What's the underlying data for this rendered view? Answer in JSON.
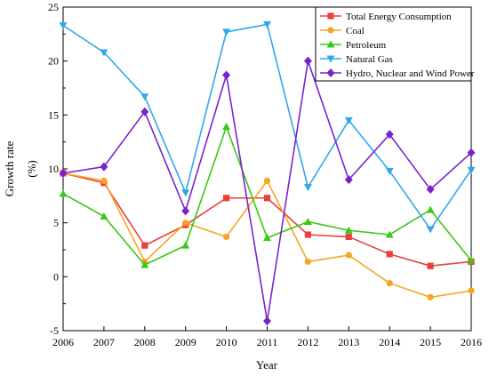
{
  "chart_data": {
    "type": "line",
    "title": "",
    "xlabel": "Year",
    "ylabel": "Growth rate",
    "ylabel_unit": "(%)",
    "x": [
      "2006",
      "2007",
      "2008",
      "2009",
      "2010",
      "2011",
      "2012",
      "2013",
      "2014",
      "2015",
      "2016"
    ],
    "x_ticks": [
      "2006",
      "2007",
      "2008",
      "2009",
      "2010",
      "2011",
      "2012",
      "2013",
      "2014",
      "2015",
      "2016"
    ],
    "y_ticks": [
      "-5",
      "0",
      "5",
      "10",
      "15",
      "20",
      "25"
    ],
    "ylim": [
      -5,
      25
    ],
    "grid": false,
    "legend_position": "top-right",
    "series": [
      {
        "name": "Total Energy Consumption",
        "color": "#e8413b",
        "marker": "square",
        "values": [
          9.6,
          8.7,
          2.9,
          4.8,
          7.3,
          7.3,
          3.9,
          3.7,
          2.1,
          1.0,
          1.4
        ]
      },
      {
        "name": "Coal",
        "color": "#f5a623",
        "marker": "circle",
        "values": [
          9.6,
          8.9,
          1.4,
          5.0,
          3.7,
          8.9,
          1.4,
          2.0,
          -0.6,
          -1.9,
          -1.3
        ]
      },
      {
        "name": "Petroleum",
        "color": "#3ac817",
        "marker": "triangle-up",
        "values": [
          7.7,
          5.6,
          1.1,
          2.9,
          13.9,
          3.6,
          5.1,
          4.3,
          3.9,
          6.2,
          1.5
        ]
      },
      {
        "name": "Natural Gas",
        "color": "#30a8ec",
        "marker": "triangle-down",
        "values": [
          23.3,
          20.8,
          16.7,
          7.8,
          22.7,
          23.4,
          8.3,
          14.5,
          9.8,
          4.4,
          9.9
        ]
      },
      {
        "name": "Hydro, Nuclear and Wind Power",
        "color": "#7a22cc",
        "marker": "diamond",
        "values": [
          9.6,
          10.2,
          15.3,
          6.1,
          18.7,
          -4.1,
          20.0,
          9.0,
          13.2,
          8.1,
          11.5
        ]
      }
    ]
  }
}
